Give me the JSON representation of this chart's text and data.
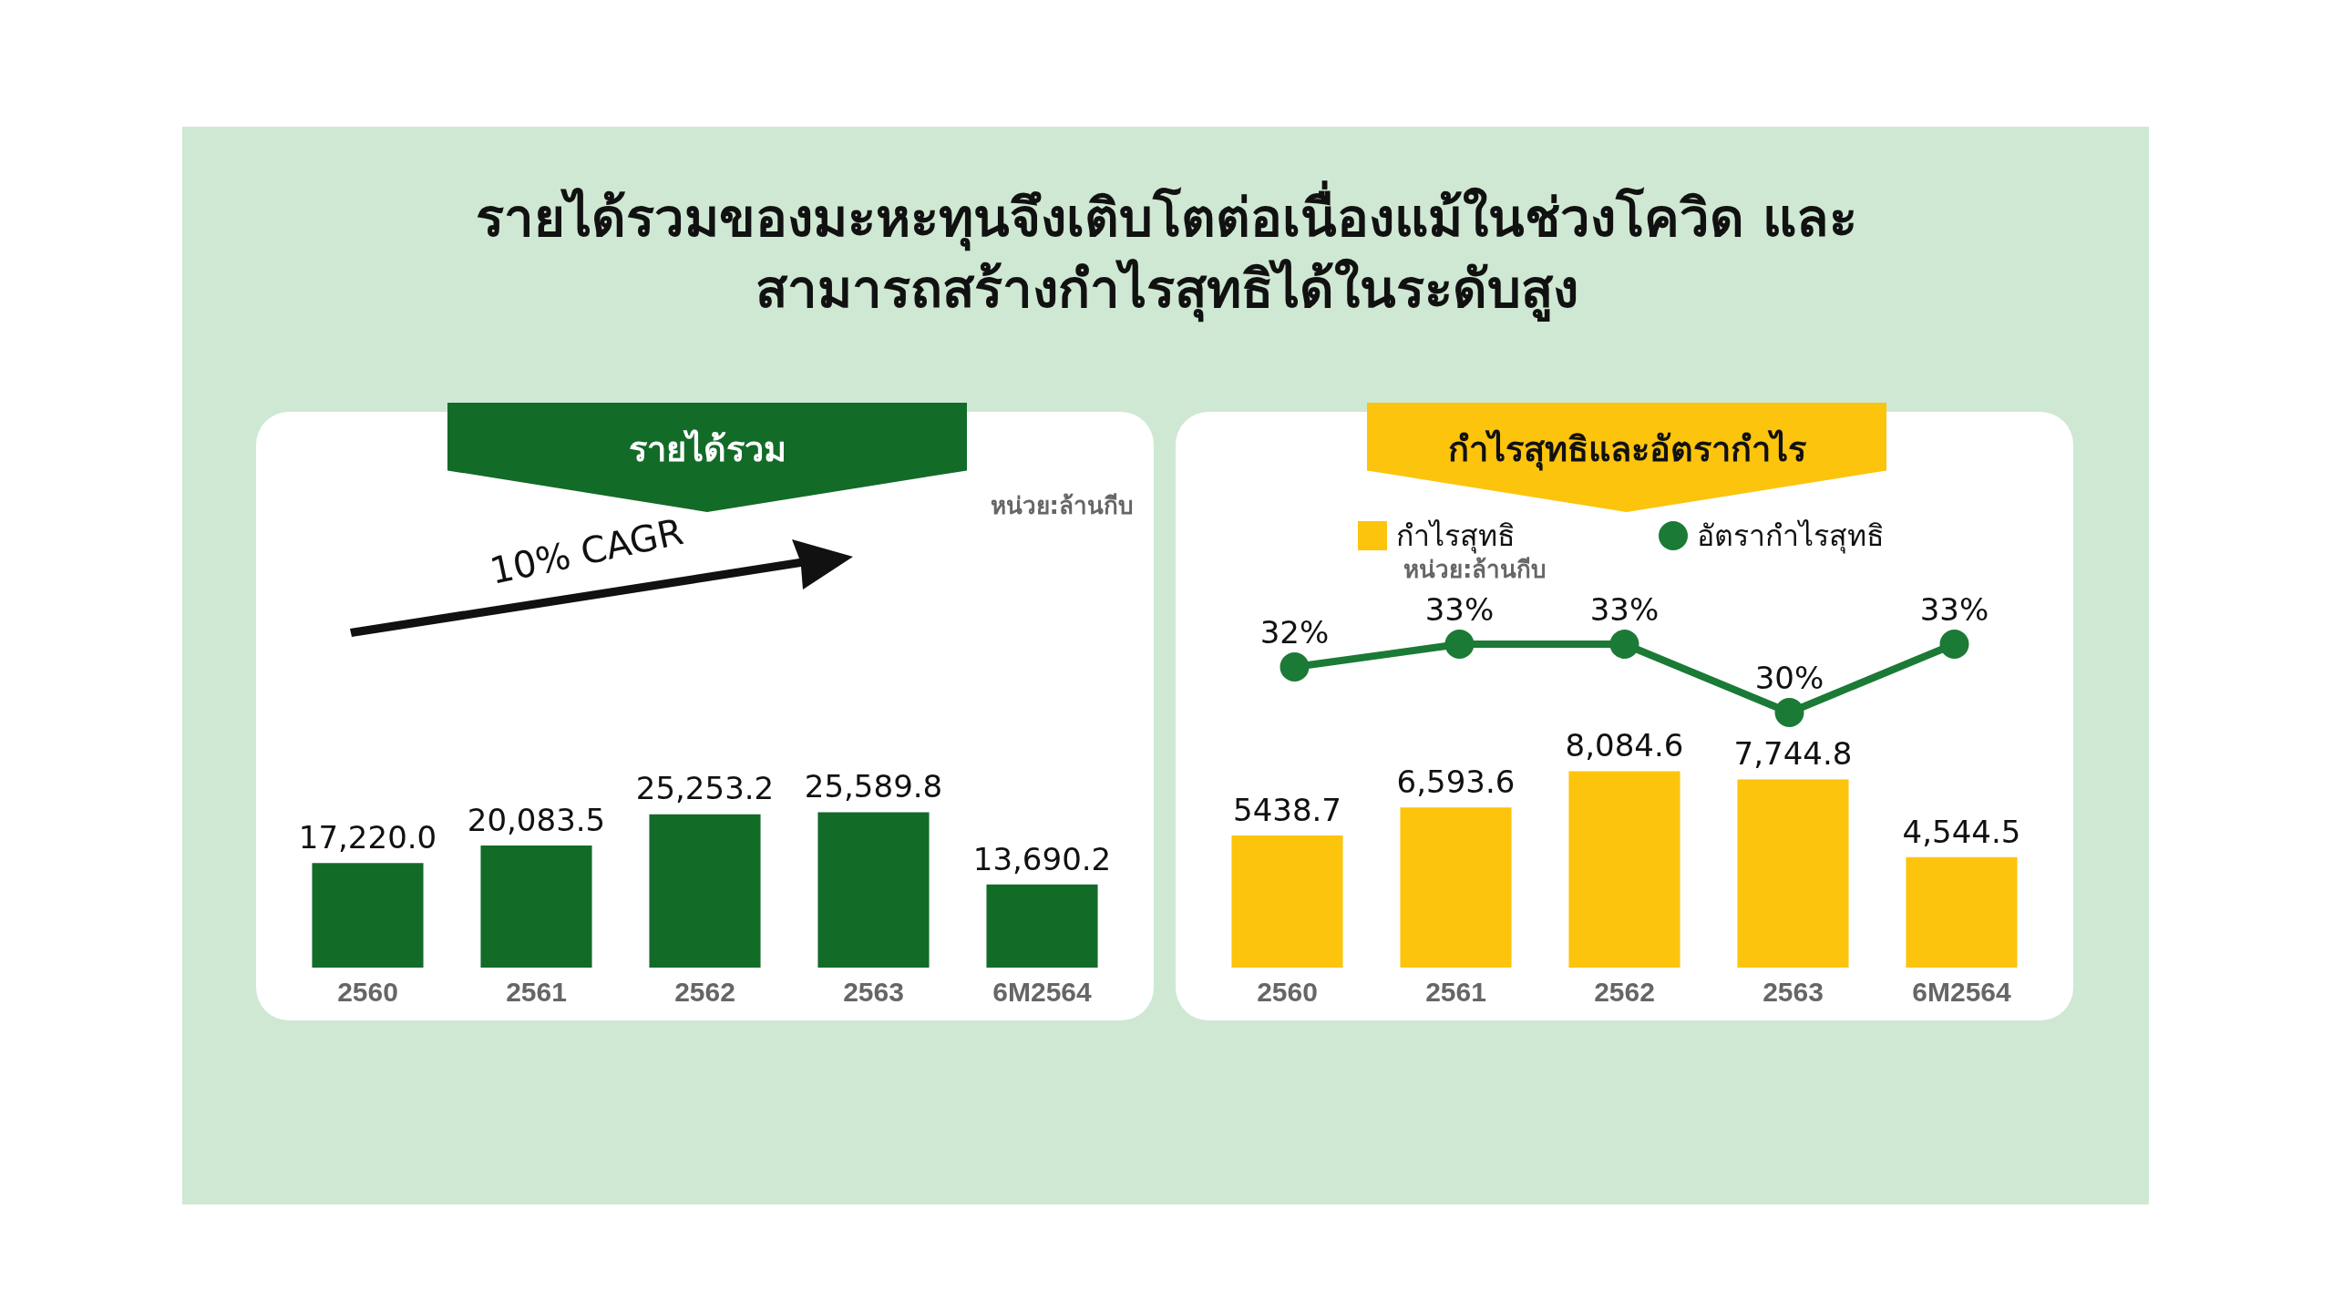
{
  "chart_data": [
    {
      "type": "bar",
      "title": "รายได้รวมของมะหะทุนจึงเติบโตต่อเนื่องแม้ในช่วงโควิด และสามารถสร้างกำไรสุทธิได้ในระดับสูง",
      "subtitle": "รายได้รวม",
      "categories": [
        "2560",
        "2561",
        "2562",
        "2563",
        "6M2564"
      ],
      "values": [
        17220.0,
        20083.5,
        25253.2,
        25589.8,
        13690.2
      ],
      "value_labels": [
        "17,220.0",
        "20,083.5",
        "25,253.2",
        "25,589.8",
        "13,690.2"
      ],
      "color": "#136b28",
      "tick_labels": "x",
      "legend": false,
      "annotations": [
        "หน่วย:ล้านกีบ",
        "10% CAGR"
      ]
    },
    {
      "type": "line",
      "title": "กำไรสุทธิและอัตรากำไร",
      "categories": [
        null,
        null,
        null,
        null,
        null
      ],
      "series": [
        {
          "name": "อัตรากำไรสุทธิ",
          "color": "#1b7a35",
          "values": [
            32,
            33,
            33,
            30,
            33
          ],
          "value_labels": [
            "32%",
            "33%",
            "33%",
            "30%",
            "33%"
          ]
        }
      ],
      "tick_labels": false,
      "legend": "top",
      "marker": "circle"
    },
    {
      "type": "bar",
      "categories": [
        "2560",
        "2561",
        "2562",
        "2563",
        "6M2564"
      ],
      "series": [
        {
          "name": "กำไรสุทธิ",
          "color": "#fcc40c",
          "values": [
            5438.7,
            6593.6,
            8084.6,
            7744.8,
            4544.5
          ],
          "value_labels": [
            "5438.7",
            "6,593.6",
            "8,084.6",
            "7,744.8",
            "4,544.5"
          ]
        }
      ],
      "tick_labels": "x",
      "legend": "top",
      "annotations": [
        "หน่วย:ล้านกีบ"
      ]
    }
  ]
}
